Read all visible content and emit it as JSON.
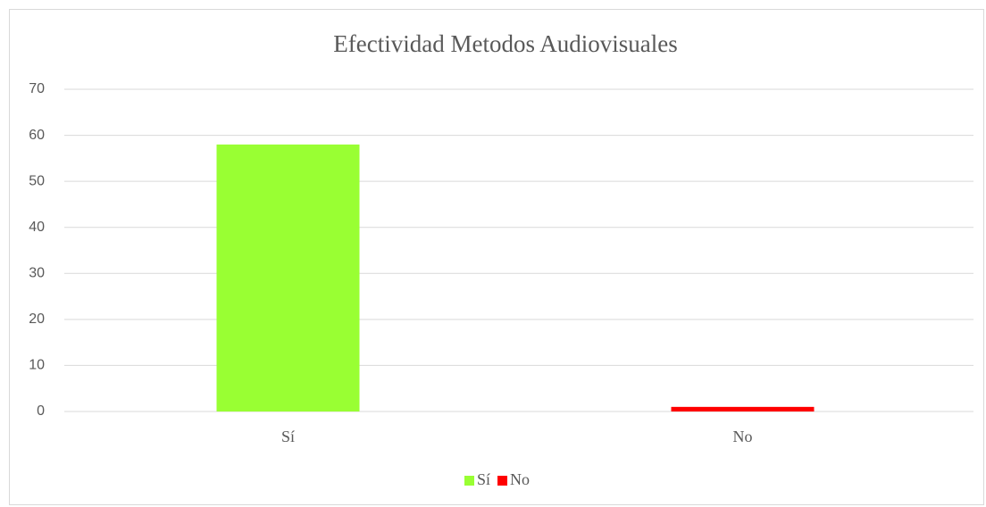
{
  "chart_data": {
    "type": "bar",
    "title": "Efectividad Metodos Audiovisuales",
    "categories": [
      "Sí",
      "No"
    ],
    "values": [
      58,
      1
    ],
    "colors": [
      "#99ff33",
      "#ff0000"
    ],
    "ylim": [
      0,
      70
    ],
    "yticks": [
      0,
      10,
      20,
      30,
      40,
      50,
      60,
      70
    ],
    "grid": true,
    "legend": "bottom"
  }
}
